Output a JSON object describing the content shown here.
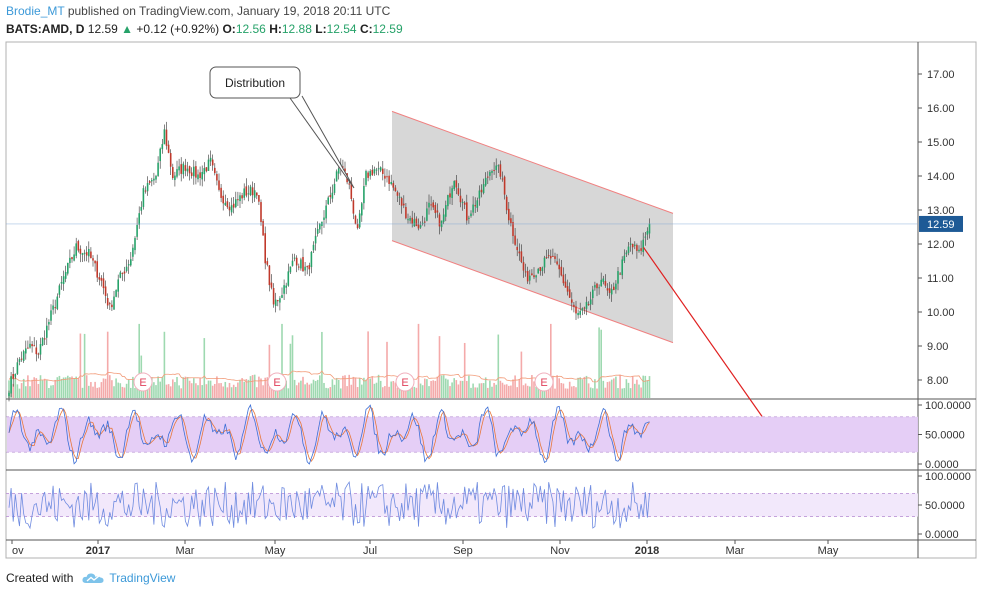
{
  "header": {
    "author": "Brodie_MT",
    "published_text": "published on TradingView.com, January 19, 2018 20:11 UTC",
    "symbol": "BATS:AMD, D",
    "last": "12.59",
    "change": "+0.12 (+0.92%)",
    "o_label": "O:",
    "o": "12.56",
    "h_label": "H:",
    "h": "12.88",
    "l_label": "L:",
    "l": "12.54",
    "c_label": "C:",
    "c": "12.59",
    "up_color": "#26a269"
  },
  "footer": {
    "created_with": "Created with",
    "brand": "TradingView",
    "logo_icon": "tradingview-cloud-icon"
  },
  "chart_data": {
    "type": "candlestick",
    "price_axis": {
      "ticks": [
        "17.00",
        "16.00",
        "15.00",
        "14.00",
        "13.00",
        "12.00",
        "11.00",
        "10.00",
        "9.00",
        "8.00"
      ],
      "ylim": [
        7.4,
        18.0
      ],
      "last_price_label": "12.59",
      "last_price": 12.59
    },
    "time_axis": {
      "labels": [
        "ov",
        "2017",
        "Mar",
        "May",
        "Jul",
        "Sep",
        "Nov",
        "2018",
        "Mar",
        "May"
      ],
      "bold_labels": [
        "2017",
        "2018"
      ]
    },
    "annotation": {
      "text": "Distribution",
      "shape": "callout"
    },
    "channel": {
      "color": "#d0d0d0",
      "border_color": "#f08080",
      "upper_start": 15.9,
      "upper_end": 12.9,
      "lower_start": 12.1,
      "lower_end": 9.1
    },
    "projection_line": {
      "color": "#e02020",
      "from_price": 11.9,
      "to_price": 7.4
    },
    "earnings_markers": {
      "label": "E",
      "count": 4,
      "color": "#e0415b"
    },
    "candles": {
      "up_color": "#26a269",
      "down_color": "#c0392b",
      "anchors": [
        [
          0,
          7.8
        ],
        [
          5,
          8.6
        ],
        [
          10,
          9.0
        ],
        [
          14,
          8.8
        ],
        [
          20,
          9.9
        ],
        [
          26,
          11.0
        ],
        [
          32,
          11.9
        ],
        [
          38,
          11.7
        ],
        [
          44,
          10.9
        ],
        [
          48,
          10.1
        ],
        [
          52,
          10.9
        ],
        [
          58,
          11.6
        ],
        [
          64,
          13.5
        ],
        [
          70,
          14.0
        ],
        [
          74,
          15.3
        ],
        [
          78,
          14.0
        ],
        [
          84,
          14.3
        ],
        [
          90,
          14.0
        ],
        [
          96,
          14.4
        ],
        [
          100,
          13.5
        ],
        [
          106,
          13.1
        ],
        [
          112,
          13.5
        ],
        [
          118,
          13.6
        ],
        [
          122,
          11.6
        ],
        [
          126,
          10.2
        ],
        [
          130,
          10.6
        ],
        [
          136,
          11.6
        ],
        [
          142,
          11.2
        ],
        [
          148,
          12.5
        ],
        [
          154,
          13.6
        ],
        [
          158,
          14.4
        ],
        [
          162,
          13.7
        ],
        [
          166,
          12.3
        ],
        [
          170,
          14.0
        ],
        [
          174,
          14.2
        ],
        [
          180,
          14.0
        ],
        [
          186,
          13.3
        ],
        [
          190,
          12.8
        ],
        [
          196,
          12.5
        ],
        [
          200,
          13.1
        ],
        [
          206,
          12.6
        ],
        [
          212,
          14.0
        ],
        [
          218,
          12.8
        ],
        [
          224,
          13.4
        ],
        [
          230,
          14.3
        ],
        [
          234,
          14.1
        ],
        [
          238,
          12.8
        ],
        [
          242,
          11.9
        ],
        [
          246,
          11.0
        ],
        [
          252,
          11.3
        ],
        [
          258,
          11.6
        ],
        [
          262,
          11.2
        ],
        [
          266,
          10.6
        ],
        [
          270,
          9.9
        ],
        [
          274,
          10.0
        ],
        [
          278,
          10.5
        ],
        [
          282,
          11.0
        ],
        [
          286,
          10.4
        ],
        [
          290,
          11.1
        ],
        [
          296,
          12.0
        ],
        [
          300,
          11.7
        ],
        [
          305,
          12.6
        ]
      ],
      "mini_x": [
        7,
        8,
        9,
        10,
        11,
        12,
        13,
        14,
        15
      ],
      "mini_prices": [
        "7.8",
        "8.1",
        "8.6",
        "9.0",
        "8.7"
      ]
    },
    "volume": {
      "color_up": "#9ed9b0",
      "color_down": "#f4aaaa",
      "ma_color": "#f29c7a"
    },
    "stoch_rsi": {
      "ticks": [
        "100.0000",
        "50.0000",
        "0.0000"
      ],
      "ylim": [
        0,
        100
      ],
      "band": [
        20,
        80
      ],
      "k_color": "#3d6fd6",
      "d_color": "#e8773a",
      "band_color": "#e2c9f5"
    },
    "oscillator2": {
      "ticks": [
        "100.0000",
        "50.0000",
        "0.0000"
      ],
      "ylim": [
        0,
        100
      ],
      "band": [
        30,
        70
      ],
      "line_color": "#6f8be0",
      "band_color": "#f1e6fb"
    }
  }
}
